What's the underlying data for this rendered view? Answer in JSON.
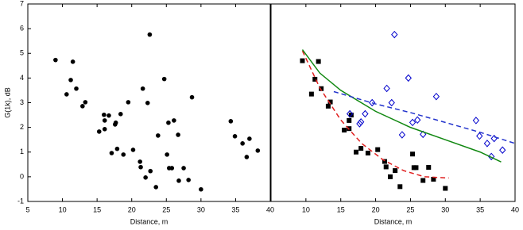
{
  "chart_data": [
    {
      "type": "scatter",
      "xlabel": "Distance, m",
      "ylabel": "G(1k), dB",
      "xlim": [
        5,
        40
      ],
      "xticks": [
        5,
        10,
        15,
        20,
        25,
        30,
        35,
        40
      ],
      "ylim": [
        -1,
        7
      ],
      "yticks": [
        -1,
        0,
        1,
        2,
        3,
        4,
        5,
        6,
        7
      ],
      "series": [
        {
          "color": "#000000",
          "marker": "circle",
          "x": [
            9.0,
            10.6,
            11.2,
            11.5,
            12.0,
            12.9,
            13.3,
            15.3,
            16.0,
            16.1,
            16.1,
            16.7,
            17.1,
            17.6,
            17.7,
            17.9,
            18.4,
            18.8,
            19.5,
            20.2,
            21.2,
            21.3,
            21.6,
            22.0,
            22.3,
            22.6,
            22.7,
            23.5,
            23.8,
            24.7,
            25.1,
            25.3,
            25.4,
            25.8,
            26.1,
            26.7,
            26.8,
            27.5,
            28.2,
            28.7,
            30.0,
            34.3,
            34.9,
            36.0,
            36.6,
            37.0,
            38.2
          ],
          "values": [
            4.73,
            3.34,
            3.92,
            4.66,
            3.57,
            2.86,
            3.02,
            1.83,
            2.51,
            1.93,
            2.28,
            2.48,
            0.96,
            2.12,
            2.19,
            1.13,
            2.54,
            0.9,
            3.02,
            1.09,
            0.61,
            0.39,
            3.57,
            -0.03,
            2.99,
            5.76,
            0.23,
            -0.42,
            1.67,
            3.96,
            0.9,
            2.19,
            0.35,
            0.35,
            2.28,
            1.7,
            -0.16,
            0.35,
            -0.13,
            3.22,
            -0.51,
            2.25,
            1.64,
            1.35,
            0.8,
            1.54,
            1.06
          ]
        }
      ]
    },
    {
      "type": "scatter",
      "xlabel": "Distance, m",
      "xlim": [
        5,
        40
      ],
      "xticks": [
        10,
        15,
        20,
        25,
        30,
        35,
        40
      ],
      "ylim": [
        -1,
        7
      ],
      "series": [
        {
          "color": "#000000",
          "marker": "square",
          "x": [
            9.5,
            10.8,
            11.3,
            11.8,
            12.2,
            13.2,
            13.5,
            15.5,
            16.2,
            16.2,
            16.5,
            17.2,
            17.9,
            18.9,
            20.3,
            21.3,
            21.5,
            22.1,
            22.8,
            23.5,
            25.3,
            25.5,
            25.8,
            26.8,
            27.6,
            28.3,
            30.0
          ],
          "values": [
            4.7,
            3.35,
            3.95,
            4.67,
            3.57,
            2.86,
            3.03,
            1.89,
            1.95,
            2.28,
            2.5,
            1.0,
            1.15,
            0.96,
            1.1,
            0.62,
            0.4,
            0.0,
            0.25,
            -0.4,
            0.92,
            0.37,
            0.37,
            -0.15,
            0.38,
            -0.1,
            -0.47
          ]
        },
        {
          "color": "#0000cc",
          "marker": "diamond",
          "x": [
            16.3,
            17.7,
            17.9,
            18.5,
            19.5,
            21.6,
            22.3,
            22.7,
            23.8,
            24.7,
            25.3,
            26.0,
            26.8,
            28.7,
            34.4,
            34.9,
            36.0,
            36.6,
            37.0,
            38.2
          ],
          "values": [
            2.55,
            2.15,
            2.22,
            2.55,
            3.0,
            3.58,
            3.0,
            5.76,
            1.7,
            4.0,
            2.2,
            2.3,
            1.72,
            3.25,
            2.28,
            1.65,
            1.35,
            0.82,
            1.55,
            1.08
          ]
        },
        {
          "color": "#e02020",
          "marker": "none",
          "dash": true,
          "x": [
            9.5,
            12,
            15,
            18,
            21,
            24,
            27,
            30.5
          ],
          "values": [
            5.1,
            3.6,
            2.3,
            1.35,
            0.7,
            0.25,
            0.0,
            -0.05
          ]
        },
        {
          "color": "#118811",
          "marker": "none",
          "dash": false,
          "x": [
            9.5,
            12,
            15,
            20,
            25,
            30,
            35,
            38
          ],
          "values": [
            5.15,
            4.2,
            3.5,
            2.65,
            2.0,
            1.5,
            1.0,
            0.6
          ]
        },
        {
          "color": "#2233cc",
          "marker": "none",
          "dash": true,
          "x": [
            14,
            20,
            25,
            30,
            35,
            40
          ],
          "values": [
            3.45,
            2.95,
            2.6,
            2.2,
            1.8,
            1.35
          ]
        }
      ]
    }
  ]
}
